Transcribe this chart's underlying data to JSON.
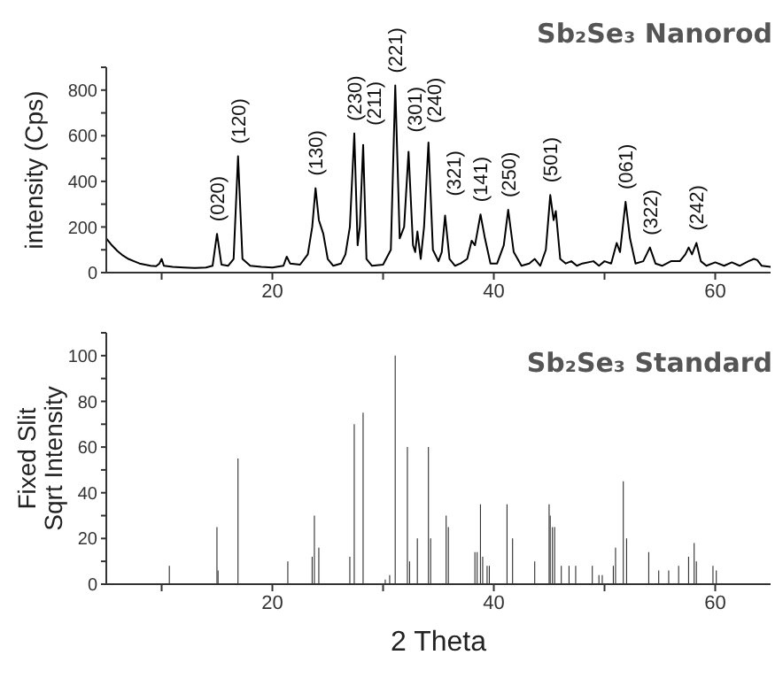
{
  "chart_data": [
    {
      "type": "line",
      "title": "Sb₂Se₃ Nanorod",
      "ylabel": "intensity (Cps)",
      "xlim": [
        5,
        65
      ],
      "xticks": [
        {
          "value": 10,
          "label": null
        },
        20,
        {
          "value": 30,
          "label": null
        },
        40,
        {
          "value": 50,
          "label": null
        },
        60
      ],
      "ylim": [
        0,
        900
      ],
      "yticks": [
        0,
        {
          "value": 100,
          "label": null
        },
        200,
        {
          "value": 300,
          "label": null
        },
        400,
        {
          "value": 500,
          "label": null
        },
        600,
        {
          "value": 700,
          "label": null
        },
        800,
        {
          "value": 900,
          "label": null
        }
      ],
      "series": [
        {
          "color": "#000000",
          "x": [
            5.0,
            5.5,
            6.0,
            6.5,
            7.0,
            7.5,
            8.0,
            8.5,
            9.0,
            9.5,
            9.8,
            10.0,
            10.2,
            11.0,
            12.0,
            13.0,
            14.0,
            14.6,
            15.0,
            15.4,
            16.0,
            16.5,
            16.9,
            17.3,
            18.0,
            19.0,
            20.0,
            21.0,
            21.3,
            21.6,
            22.5,
            23.2,
            23.6,
            23.9,
            24.2,
            24.6,
            25.0,
            25.5,
            26.2,
            26.6,
            27.0,
            27.4,
            27.7,
            27.9,
            28.2,
            28.5,
            29.0,
            30.0,
            30.7,
            31.1,
            31.5,
            31.9,
            32.3,
            32.7,
            32.9,
            33.1,
            33.4,
            33.7,
            34.1,
            34.5,
            35.0,
            35.3,
            35.6,
            36.0,
            36.5,
            37.0,
            37.6,
            38.0,
            38.3,
            38.8,
            39.2,
            39.7,
            40.3,
            40.9,
            41.3,
            41.8,
            42.5,
            43.2,
            43.7,
            44.2,
            44.7,
            45.1,
            45.4,
            45.6,
            46.0,
            46.5,
            47.0,
            47.5,
            48.0,
            49.0,
            49.5,
            50.0,
            50.6,
            51.1,
            51.4,
            51.9,
            52.3,
            52.8,
            53.5,
            54.1,
            54.6,
            55.2,
            56.0,
            56.8,
            57.3,
            57.6,
            57.9,
            58.3,
            58.7,
            59.2,
            60.0,
            60.8,
            61.5,
            62.2,
            63.0,
            63.5,
            63.8,
            64.2,
            65.0
          ],
          "values": [
            150,
            120,
            95,
            75,
            60,
            50,
            40,
            35,
            30,
            28,
            40,
            60,
            30,
            25,
            22,
            20,
            22,
            30,
            170,
            35,
            30,
            60,
            510,
            60,
            30,
            25,
            22,
            30,
            70,
            40,
            35,
            80,
            200,
            370,
            230,
            170,
            60,
            30,
            40,
            80,
            200,
            610,
            120,
            200,
            560,
            60,
            30,
            35,
            100,
            820,
            150,
            200,
            530,
            120,
            90,
            180,
            60,
            200,
            570,
            100,
            50,
            90,
            250,
            60,
            30,
            40,
            60,
            140,
            120,
            255,
            150,
            40,
            40,
            120,
            275,
            90,
            30,
            40,
            60,
            30,
            100,
            340,
            230,
            270,
            60,
            40,
            50,
            30,
            40,
            50,
            30,
            50,
            40,
            130,
            90,
            310,
            150,
            40,
            50,
            110,
            40,
            30,
            50,
            50,
            80,
            110,
            80,
            130,
            50,
            30,
            45,
            30,
            45,
            30,
            50,
            60,
            55,
            30,
            25
          ]
        }
      ],
      "annotations": [
        {
          "text": "(020)",
          "x": 15.0,
          "y": 170
        },
        {
          "text": "(120)",
          "x": 16.9,
          "y": 510
        },
        {
          "text": "(130)",
          "x": 23.9,
          "y": 370
        },
        {
          "text": "(230)",
          "x": 27.4,
          "y": 610
        },
        {
          "text": "(211)",
          "x": 28.2,
          "y": 560
        },
        {
          "text": "(221)",
          "x": 31.1,
          "y": 820
        },
        {
          "text": "(301)",
          "x": 32.3,
          "y": 530
        },
        {
          "text": "(240)",
          "x": 34.1,
          "y": 570
        },
        {
          "text": "(321)",
          "x": 35.6,
          "y": 250
        },
        {
          "text": "(141)",
          "x": 38.8,
          "y": 255
        },
        {
          "text": "(250)",
          "x": 41.3,
          "y": 275
        },
        {
          "text": "(501)",
          "x": 45.1,
          "y": 340
        },
        {
          "text": "(061)",
          "x": 51.9,
          "y": 310
        },
        {
          "text": "(322)",
          "x": 54.1,
          "y": 110
        },
        {
          "text": "(242)",
          "x": 58.3,
          "y": 130
        }
      ]
    },
    {
      "type": "bar",
      "title": "Sb₂Se₃ Standard",
      "ylabel": "Fixed Slit\nSqrt Intensity",
      "xlabel": "2 Theta",
      "xlim": [
        5,
        65
      ],
      "xticks": [
        {
          "value": 10,
          "label": null
        },
        20,
        {
          "value": 30,
          "label": null
        },
        40,
        {
          "value": 50,
          "label": null
        },
        60
      ],
      "ylim": [
        0,
        110
      ],
      "yticks": [
        0,
        {
          "value": 10,
          "label": null
        },
        20,
        {
          "value": 30,
          "label": null
        },
        40,
        {
          "value": 50,
          "label": null
        },
        60,
        {
          "value": 70,
          "label": null
        },
        80,
        {
          "value": 90,
          "label": null
        },
        100,
        {
          "value": 110,
          "label": null
        }
      ],
      "series": [
        {
          "color": "#333333",
          "x": [
            10.7,
            15.0,
            15.1,
            16.9,
            21.4,
            23.6,
            23.8,
            24.2,
            27.0,
            27.4,
            28.2,
            30.2,
            30.6,
            31.1,
            32.2,
            32.4,
            33.1,
            34.1,
            34.3,
            35.7,
            35.9,
            38.3,
            38.5,
            38.8,
            39.0,
            39.4,
            39.6,
            41.2,
            41.7,
            43.7,
            45.0,
            45.1,
            45.3,
            45.5,
            46.1,
            46.8,
            47.4,
            48.9,
            49.5,
            49.8,
            50.8,
            51.0,
            51.7,
            52.0,
            54.0,
            54.9,
            55.8,
            56.7,
            57.6,
            58.1,
            58.3,
            59.8,
            60.1
          ],
          "values": [
            8,
            25,
            6,
            55,
            10,
            12,
            30,
            16,
            12,
            70,
            75,
            2,
            4,
            100,
            60,
            10,
            20,
            60,
            20,
            30,
            25,
            14,
            14,
            35,
            12,
            8,
            8,
            35,
            20,
            10,
            35,
            30,
            25,
            25,
            8,
            8,
            8,
            8,
            4,
            4,
            8,
            16,
            45,
            20,
            14,
            6,
            6,
            8,
            12,
            18,
            10,
            8,
            6
          ]
        }
      ]
    }
  ]
}
